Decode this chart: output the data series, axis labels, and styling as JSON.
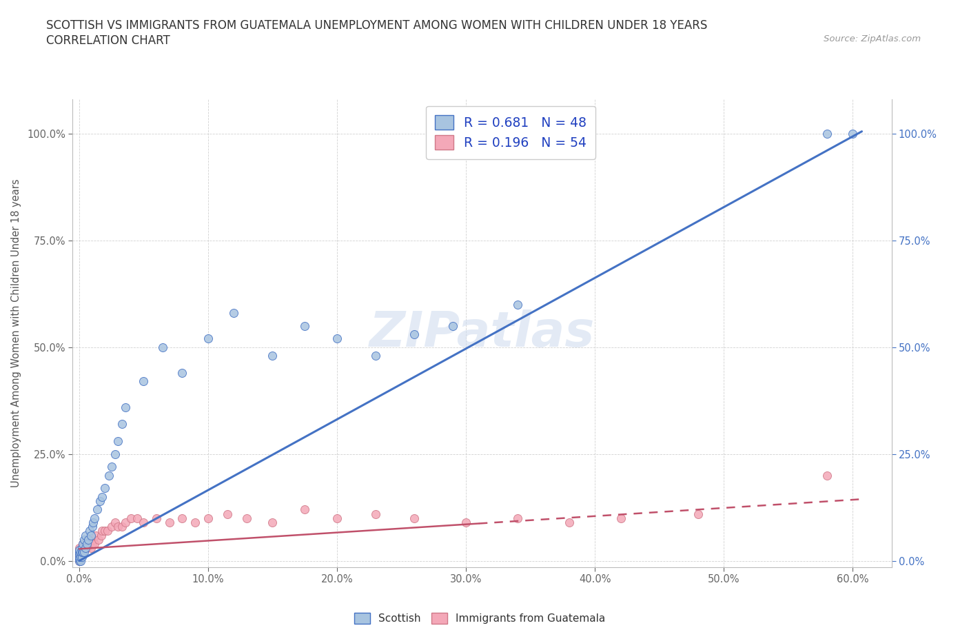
{
  "title_line1": "SCOTTISH VS IMMIGRANTS FROM GUATEMALA UNEMPLOYMENT AMONG WOMEN WITH CHILDREN UNDER 18 YEARS",
  "title_line2": "CORRELATION CHART",
  "source_text": "Source: ZipAtlas.com",
  "ylabel": "Unemployment Among Women with Children Under 18 years",
  "x_tick_labels": [
    "0.0%",
    "10.0%",
    "20.0%",
    "30.0%",
    "40.0%",
    "50.0%",
    "60.0%"
  ],
  "x_tick_values": [
    0.0,
    0.1,
    0.2,
    0.3,
    0.4,
    0.5,
    0.6
  ],
  "y_tick_labels": [
    "0.0%",
    "25.0%",
    "50.0%",
    "75.0%",
    "100.0%"
  ],
  "y_tick_values": [
    0.0,
    0.25,
    0.5,
    0.75,
    1.0
  ],
  "xlim": [
    -0.005,
    0.63
  ],
  "ylim": [
    -0.015,
    1.08
  ],
  "color_scottish": "#a8c4e0",
  "color_guatemala": "#f4a8b8",
  "color_line_scottish": "#4472c4",
  "color_line_guatemala": "#c0506a",
  "color_text_legend": "#2040c0",
  "watermark_text": "ZIPatlas",
  "scottish_x": [
    0.0,
    0.0,
    0.0,
    0.0,
    0.0,
    0.0,
    0.001,
    0.001,
    0.001,
    0.002,
    0.002,
    0.002,
    0.003,
    0.003,
    0.004,
    0.004,
    0.005,
    0.005,
    0.006,
    0.007,
    0.008,
    0.009,
    0.01,
    0.011,
    0.012,
    0.014,
    0.016,
    0.018,
    0.02,
    0.023,
    0.025,
    0.028,
    0.03,
    0.033,
    0.036,
    0.05,
    0.065,
    0.08,
    0.1,
    0.12,
    0.15,
    0.175,
    0.2,
    0.23,
    0.26,
    0.29,
    0.34,
    0.58,
    0.6
  ],
  "scottish_y": [
    0.0,
    0.005,
    0.01,
    0.015,
    0.02,
    0.025,
    0.0,
    0.01,
    0.02,
    0.01,
    0.02,
    0.03,
    0.02,
    0.04,
    0.02,
    0.05,
    0.03,
    0.06,
    0.04,
    0.05,
    0.07,
    0.06,
    0.08,
    0.09,
    0.1,
    0.12,
    0.14,
    0.15,
    0.17,
    0.2,
    0.22,
    0.25,
    0.28,
    0.32,
    0.36,
    0.42,
    0.5,
    0.44,
    0.52,
    0.58,
    0.48,
    0.55,
    0.52,
    0.48,
    0.53,
    0.55,
    0.6,
    1.0,
    1.0
  ],
  "guatemala_x": [
    0.0,
    0.0,
    0.0,
    0.0,
    0.0,
    0.0,
    0.0,
    0.001,
    0.001,
    0.002,
    0.002,
    0.003,
    0.003,
    0.004,
    0.005,
    0.006,
    0.007,
    0.008,
    0.009,
    0.01,
    0.011,
    0.012,
    0.013,
    0.015,
    0.017,
    0.018,
    0.02,
    0.022,
    0.025,
    0.028,
    0.03,
    0.033,
    0.036,
    0.04,
    0.045,
    0.05,
    0.06,
    0.07,
    0.08,
    0.09,
    0.1,
    0.115,
    0.13,
    0.15,
    0.175,
    0.2,
    0.23,
    0.26,
    0.3,
    0.34,
    0.38,
    0.42,
    0.48,
    0.58
  ],
  "guatemala_y": [
    0.0,
    0.005,
    0.01,
    0.015,
    0.02,
    0.025,
    0.03,
    0.01,
    0.02,
    0.02,
    0.03,
    0.02,
    0.04,
    0.03,
    0.04,
    0.03,
    0.05,
    0.04,
    0.03,
    0.04,
    0.05,
    0.04,
    0.06,
    0.05,
    0.06,
    0.07,
    0.07,
    0.07,
    0.08,
    0.09,
    0.08,
    0.08,
    0.09,
    0.1,
    0.1,
    0.09,
    0.1,
    0.09,
    0.1,
    0.09,
    0.1,
    0.11,
    0.1,
    0.09,
    0.12,
    0.1,
    0.11,
    0.1,
    0.09,
    0.1,
    0.09,
    0.1,
    0.11,
    0.2
  ],
  "scottish_line_x": [
    0.0,
    0.607
  ],
  "scottish_line_y": [
    0.0,
    1.005
  ],
  "guatemala_line_x": [
    0.0,
    0.61
  ],
  "guatemala_line_y": [
    0.028,
    0.145
  ]
}
